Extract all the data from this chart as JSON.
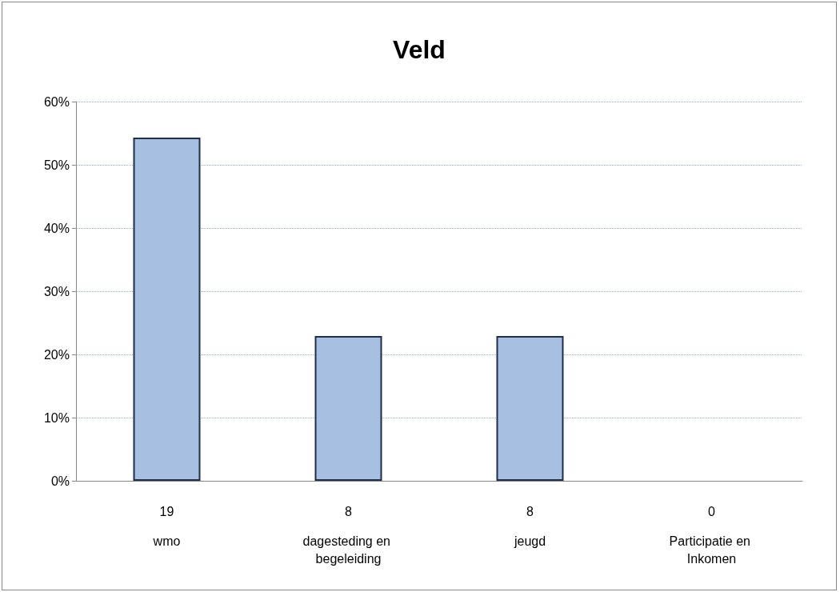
{
  "chart_data": {
    "type": "bar",
    "title": "Veld",
    "categories": [
      "wmo",
      "dagesteding en begeleiding",
      "jeugd",
      "Participatie en Inkomen"
    ],
    "values": [
      54.3,
      22.9,
      22.9,
      0
    ],
    "annotations": [
      "19",
      "8",
      "8",
      "0"
    ],
    "color": "#a7c0e2",
    "ylim": [
      0,
      60
    ],
    "yticks": [
      {
        "value": 0,
        "label": "0%"
      },
      {
        "value": 10,
        "label": "10%"
      },
      {
        "value": 20,
        "label": "20%"
      },
      {
        "value": 30,
        "label": "30%"
      },
      {
        "value": 40,
        "label": "40%"
      },
      {
        "value": 50,
        "label": "50%"
      },
      {
        "value": 60,
        "label": "60%"
      }
    ],
    "grid": "y"
  }
}
